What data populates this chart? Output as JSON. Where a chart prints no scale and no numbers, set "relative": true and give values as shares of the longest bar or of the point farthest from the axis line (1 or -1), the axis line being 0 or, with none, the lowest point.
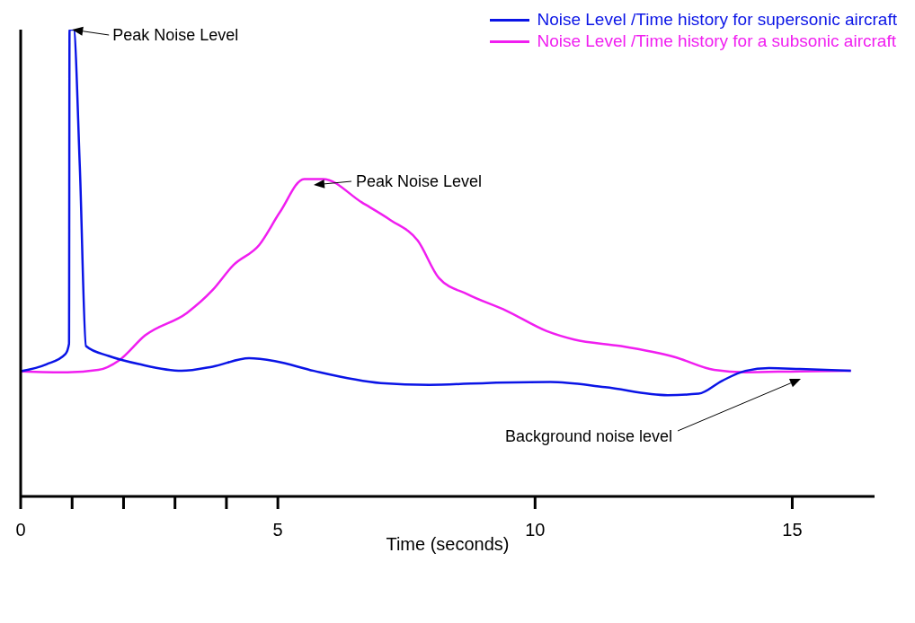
{
  "chart_data": {
    "type": "line",
    "relative": true,
    "xlabel": "Time (seconds)",
    "xlim": [
      0,
      16.6
    ],
    "xticks": [
      0,
      {
        "value": 1,
        "label": null
      },
      {
        "value": 2,
        "label": null
      },
      {
        "value": 3,
        "label": null
      },
      {
        "value": 4,
        "label": null
      },
      5,
      10,
      15
    ],
    "grid": false,
    "legend": "top right",
    "marker": "none",
    "line_style": "solid",
    "series": [
      {
        "name": "Noise Level /Time history for supersonic aircraft",
        "color": "#0a14e6",
        "x": [
          0,
          0.5,
          0.87,
          0.94,
          0.95,
          1.03,
          1.15,
          1.27,
          1.71,
          2.32,
          3.13,
          3.73,
          4.44,
          4.94,
          5.7,
          7.0,
          7.94,
          9.06,
          10.3,
          11.36,
          12.58,
          13.18,
          13.64,
          14.09,
          14.55,
          15.15,
          16.14
        ],
        "values": [
          0.268,
          0.283,
          0.305,
          0.327,
          1.0,
          1.0,
          0.706,
          0.322,
          0.301,
          0.283,
          0.269,
          0.278,
          0.296,
          0.29,
          0.269,
          0.243,
          0.239,
          0.243,
          0.245,
          0.234,
          0.217,
          0.22,
          0.248,
          0.269,
          0.275,
          0.273,
          0.269
        ]
      },
      {
        "name": "Noise Level /Time history for a subsonic aircraft",
        "color": "#f01ef0",
        "x": [
          0,
          0.91,
          1.51,
          1.92,
          2.42,
          3.23,
          3.73,
          4.13,
          4.64,
          5.04,
          5.51,
          5.88,
          6.63,
          7.19,
          7.72,
          8.13,
          8.69,
          9.44,
          10.23,
          10.76,
          11.67,
          12.73,
          13.48,
          14.09,
          15.15,
          16.14
        ],
        "values": [
          0.268,
          0.266,
          0.271,
          0.292,
          0.345,
          0.393,
          0.442,
          0.495,
          0.539,
          0.609,
          0.68,
          0.68,
          0.63,
          0.592,
          0.548,
          0.468,
          0.433,
          0.398,
          0.354,
          0.336,
          0.322,
          0.298,
          0.271,
          0.266,
          0.268,
          0.269
        ]
      }
    ],
    "annotations": [
      {
        "text": "Peak Noise Level",
        "x": 1.0,
        "y": 1.0
      },
      "Peak Noise Level",
      "Background noise level"
    ]
  }
}
